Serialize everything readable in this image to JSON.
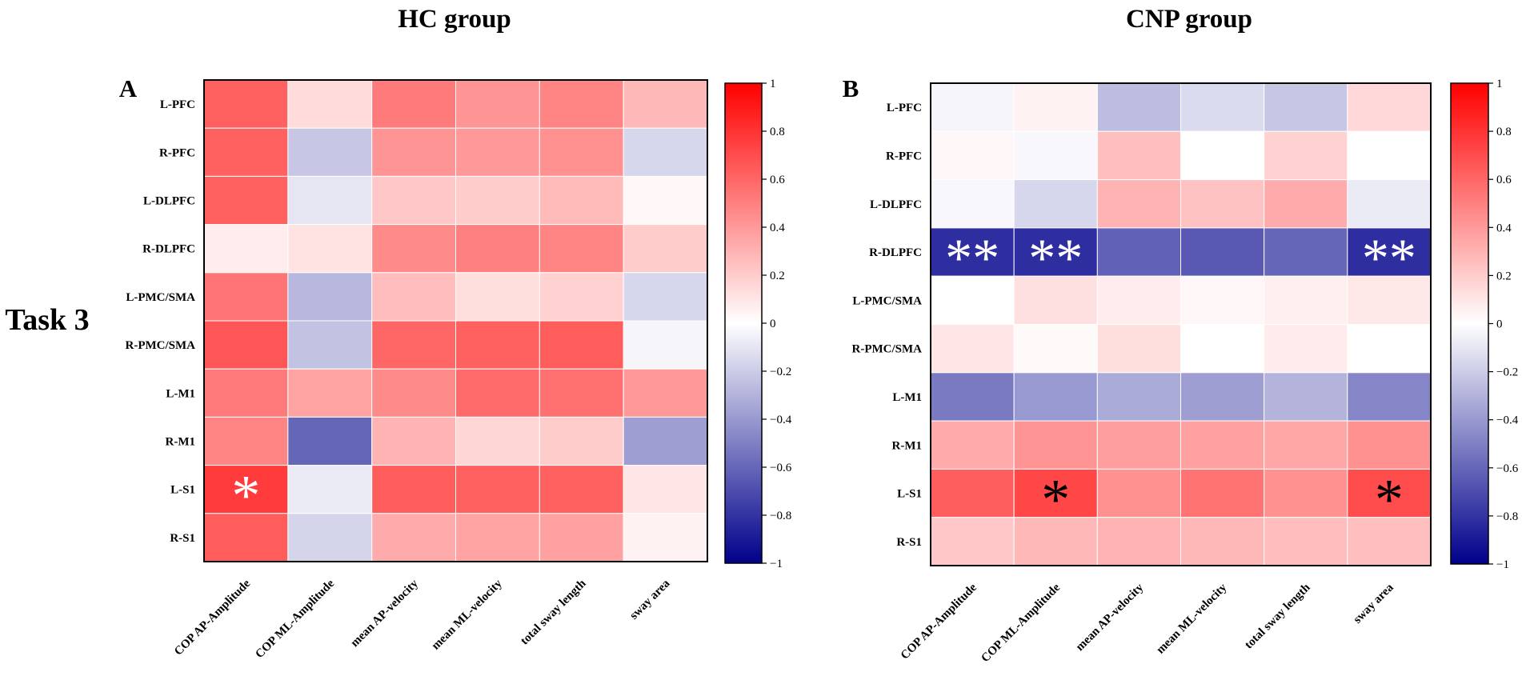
{
  "figure": {
    "row_label": "Task 3",
    "colormap": {
      "low": "#00008B",
      "mid": "#FFFFFF",
      "high": "#FF0000"
    }
  },
  "chart_data": [
    {
      "type": "heatmap",
      "panel_letter": "A",
      "title": "HC group",
      "rows": [
        "L-PFC",
        "R-PFC",
        "L-DLPFC",
        "R-DLPFC",
        "L-PMC/SMA",
        "R-PMC/SMA",
        "L-M1",
        "R-M1",
        "L-S1",
        "R-S1"
      ],
      "columns": [
        "COP AP-Amplitude",
        "COP ML-Amplitude",
        "mean AP-velocity",
        "mean ML-velocity",
        "total sway length",
        "sway area"
      ],
      "values": [
        [
          0.62,
          0.14,
          0.52,
          0.42,
          0.48,
          0.28
        ],
        [
          0.62,
          -0.22,
          0.42,
          0.4,
          0.43,
          -0.16
        ],
        [
          0.62,
          -0.1,
          0.22,
          0.2,
          0.27,
          0.03
        ],
        [
          0.07,
          0.11,
          0.46,
          0.5,
          0.48,
          0.2
        ],
        [
          0.54,
          -0.28,
          0.26,
          0.13,
          0.18,
          -0.16
        ],
        [
          0.66,
          -0.24,
          0.6,
          0.62,
          0.64,
          -0.04
        ],
        [
          0.52,
          0.36,
          0.46,
          0.58,
          0.56,
          0.4
        ],
        [
          0.48,
          -0.6,
          0.3,
          0.16,
          0.2,
          -0.38
        ],
        [
          0.77,
          -0.08,
          0.64,
          0.62,
          0.62,
          0.1
        ],
        [
          0.64,
          -0.17,
          0.33,
          0.36,
          0.37,
          0.05
        ]
      ],
      "significance": [
        [
          "",
          "",
          "",
          "",
          "",
          ""
        ],
        [
          "",
          "",
          "",
          "",
          "",
          ""
        ],
        [
          "",
          "",
          "",
          "",
          "",
          ""
        ],
        [
          "",
          "",
          "",
          "",
          "",
          ""
        ],
        [
          "",
          "",
          "",
          "",
          "",
          ""
        ],
        [
          "",
          "",
          "",
          "",
          "",
          ""
        ],
        [
          "",
          "",
          "",
          "",
          "",
          ""
        ],
        [
          "",
          "",
          "",
          "",
          "",
          ""
        ],
        [
          "*",
          "",
          "",
          "",
          "",
          ""
        ],
        [
          "",
          "",
          "",
          "",
          "",
          ""
        ]
      ],
      "colorbar": {
        "range": [
          -1,
          1
        ],
        "ticks": [
          "1",
          "0.8",
          "0.6",
          "0.4",
          "0.2",
          "0",
          "-0.2",
          "-0.4",
          "-0.6",
          "-0.8",
          "-1"
        ]
      }
    },
    {
      "type": "heatmap",
      "panel_letter": "B",
      "title": "CNP group",
      "rows": [
        "L-PFC",
        "R-PFC",
        "L-DLPFC",
        "R-DLPFC",
        "L-PMC/SMA",
        "R-PMC/SMA",
        "L-M1",
        "R-M1",
        "L-S1",
        "R-S1"
      ],
      "columns": [
        "COP AP-Amplitude",
        "COP ML-Amplitude",
        "mean AP-velocity",
        "mean ML-velocity",
        "total sway length",
        "sway area"
      ],
      "values": [
        [
          -0.04,
          0.05,
          -0.26,
          -0.14,
          -0.22,
          0.15
        ],
        [
          0.03,
          -0.03,
          0.25,
          0.0,
          0.18,
          0.0
        ],
        [
          -0.03,
          -0.16,
          0.3,
          0.24,
          0.33,
          -0.08
        ],
        [
          -0.82,
          -0.82,
          -0.62,
          -0.65,
          -0.6,
          -0.82
        ],
        [
          0.0,
          0.12,
          0.07,
          0.03,
          0.06,
          0.09
        ],
        [
          0.1,
          0.02,
          0.13,
          0.0,
          0.08,
          0.0
        ],
        [
          -0.52,
          -0.4,
          -0.33,
          -0.38,
          -0.3,
          -0.48
        ],
        [
          0.33,
          0.42,
          0.38,
          0.37,
          0.35,
          0.43
        ],
        [
          0.63,
          0.72,
          0.43,
          0.55,
          0.43,
          0.7
        ],
        [
          0.22,
          0.28,
          0.3,
          0.28,
          0.26,
          0.25
        ]
      ],
      "significance": [
        [
          "",
          "",
          "",
          "",
          "",
          ""
        ],
        [
          "",
          "",
          "",
          "",
          "",
          ""
        ],
        [
          "",
          "",
          "",
          "",
          "",
          ""
        ],
        [
          "**",
          "**",
          "",
          "",
          "",
          "**"
        ],
        [
          "",
          "",
          "",
          "",
          "",
          ""
        ],
        [
          "",
          "",
          "",
          "",
          "",
          ""
        ],
        [
          "",
          "",
          "",
          "",
          "",
          ""
        ],
        [
          "",
          "",
          "",
          "",
          "",
          ""
        ],
        [
          "",
          "*",
          "",
          "",
          "",
          "*"
        ],
        [
          "",
          "",
          "",
          "",
          "",
          ""
        ]
      ],
      "colorbar": {
        "range": [
          -1,
          1
        ],
        "ticks": [
          "1",
          "0.8",
          "0.6",
          "0.4",
          "0.2",
          "0",
          "-0.2",
          "-0.4",
          "-0.6",
          "-0.8",
          "-1"
        ]
      }
    }
  ]
}
